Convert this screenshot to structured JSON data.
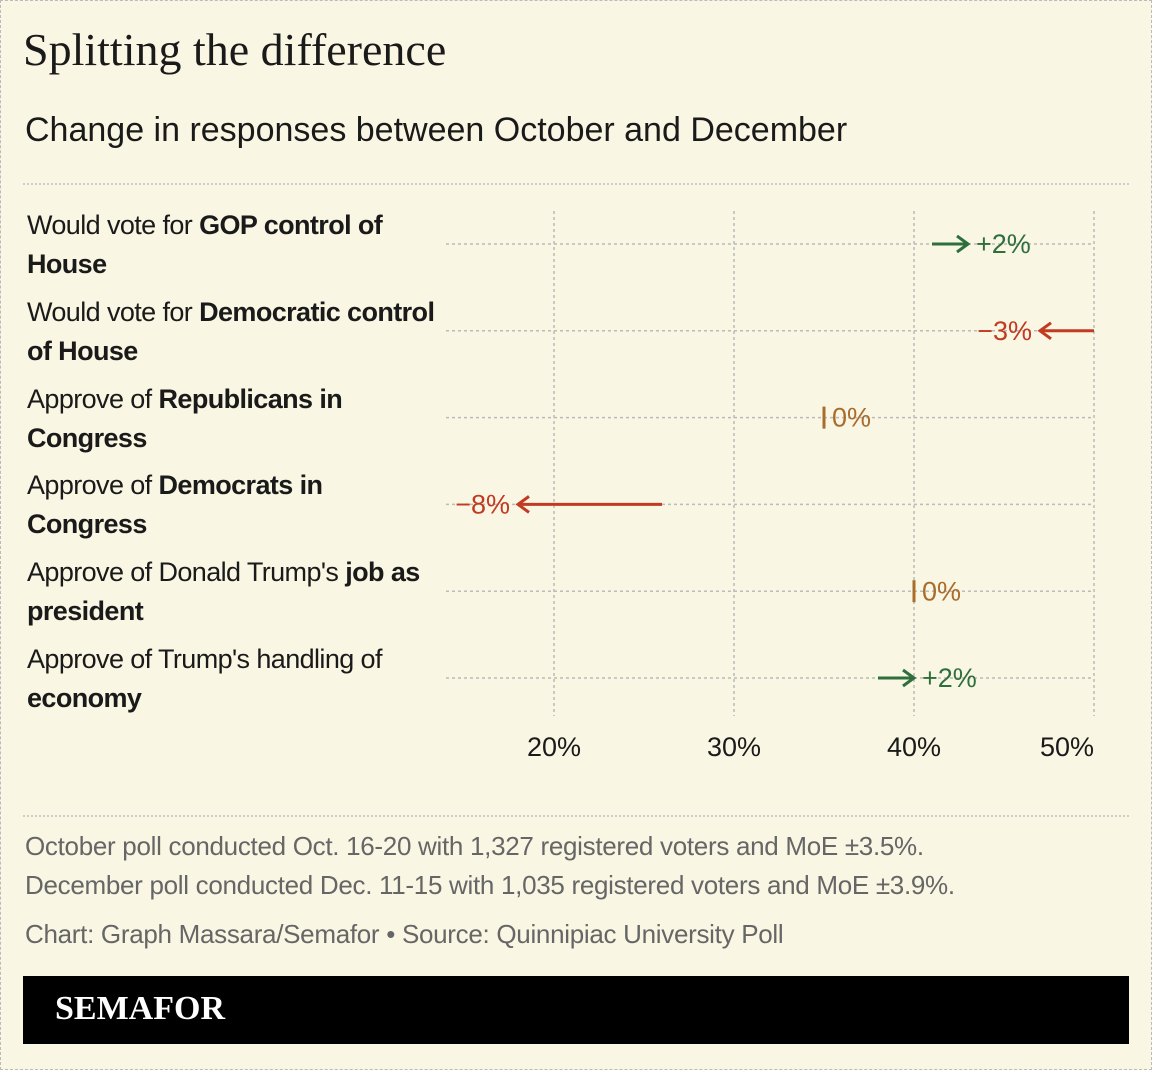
{
  "chart_data": {
    "type": "arrow",
    "title": "Splitting the difference",
    "subtitle": "Change in responses between October and December",
    "categories": [
      [
        {
          "text": "Would vote for ",
          "bold": false
        },
        {
          "text": "GOP control of House",
          "bold": true
        }
      ],
      [
        {
          "text": "Would vote for ",
          "bold": false
        },
        {
          "text": "Democratic control of House",
          "bold": true
        }
      ],
      [
        {
          "text": "Approve of ",
          "bold": false
        },
        {
          "text": "Republicans in Congress",
          "bold": true
        }
      ],
      [
        {
          "text": "Approve of ",
          "bold": false
        },
        {
          "text": "Democrats in Congress",
          "bold": true
        }
      ],
      [
        {
          "text": "Approve of Donald Trump's ",
          "bold": false
        },
        {
          "text": "job as president",
          "bold": true
        }
      ],
      [
        {
          "text": "Approve of Trump's handling of ",
          "bold": false
        },
        {
          "text": "economy",
          "bold": true
        }
      ]
    ],
    "start": [
      41,
      50,
      35,
      26,
      40,
      38
    ],
    "end": [
      43,
      47,
      35,
      18,
      40,
      40
    ],
    "change": {
      "values": [
        2,
        -3,
        0,
        -8,
        0,
        2
      ],
      "value_labels": [
        "+2%",
        "−3%",
        "0%",
        "−8%",
        "0%",
        "+2%"
      ]
    },
    "colors": {
      "up": "#2f6e3d",
      "down": "#c23a22",
      "flat": "#a86c2c"
    },
    "xlim": [
      14,
      50
    ],
    "xticks": [
      {
        "value": 20,
        "label": "20%"
      },
      {
        "value": 30,
        "label": "30%"
      },
      {
        "value": 40,
        "label": "40%"
      },
      {
        "value": 50,
        "label": "50%"
      }
    ],
    "grid": true,
    "notes": [
      "October poll conducted Oct. 16-20 with 1,327 registered voters and MoE ±3.5%.",
      "December poll conducted Dec. 11-15 with 1,035 registered voters and MoE ±3.9%."
    ],
    "credit": "Chart: Graph Massara/Semafor • Source: Quinnipiac University Poll",
    "brand": "SEMAFOR"
  }
}
